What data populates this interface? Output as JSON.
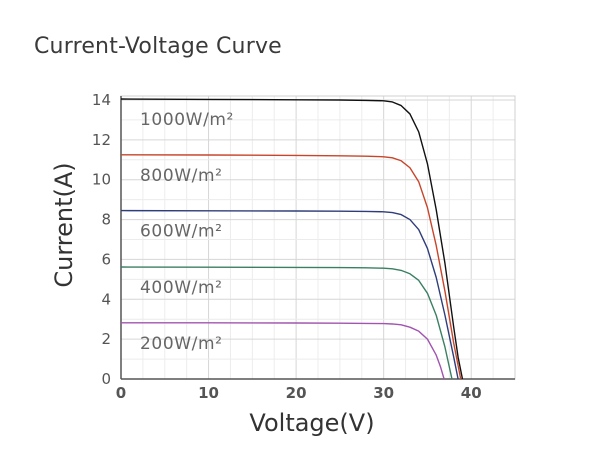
{
  "chart_data": {
    "type": "line",
    "title": "Current-Voltage Curve",
    "xlabel": "Voltage(V)",
    "ylabel": "Current(A)",
    "xlim": [
      0,
      45
    ],
    "ylim": [
      0,
      14.2
    ],
    "xticks": [
      0,
      10,
      20,
      30,
      40
    ],
    "yticks": [
      0,
      2,
      4,
      6,
      8,
      10,
      12,
      14
    ],
    "grid": true,
    "series": [
      {
        "name": "1000W/m²",
        "color": "#111111",
        "x": [
          0,
          10,
          20,
          25,
          28,
          30,
          31,
          32,
          33,
          34,
          35,
          36,
          37,
          38,
          38.5,
          39
        ],
        "y": [
          14.05,
          14.03,
          14.01,
          14.0,
          13.98,
          13.96,
          13.9,
          13.72,
          13.3,
          12.4,
          10.8,
          8.5,
          5.8,
          2.6,
          1.1,
          0
        ]
      },
      {
        "name": "800W/m²",
        "color": "#c8452a",
        "x": [
          0,
          10,
          20,
          25,
          28,
          30,
          31,
          32,
          33,
          34,
          35,
          36,
          37,
          38,
          38.8
        ],
        "y": [
          11.25,
          11.24,
          11.22,
          11.2,
          11.18,
          11.15,
          11.1,
          10.95,
          10.6,
          9.9,
          8.6,
          6.7,
          4.4,
          1.8,
          0
        ]
      },
      {
        "name": "600W/m²",
        "color": "#2f3d7a",
        "x": [
          0,
          10,
          20,
          25,
          28,
          30,
          31,
          32,
          33,
          34,
          35,
          36,
          37,
          38,
          38.5
        ],
        "y": [
          8.45,
          8.44,
          8.43,
          8.42,
          8.41,
          8.39,
          8.35,
          8.25,
          8.0,
          7.5,
          6.55,
          5.1,
          3.2,
          1.1,
          0
        ]
      },
      {
        "name": "400W/m²",
        "color": "#3a7f62",
        "x": [
          0,
          10,
          20,
          25,
          28,
          30,
          31,
          32,
          33,
          34,
          35,
          36,
          37,
          37.8
        ],
        "y": [
          5.62,
          5.61,
          5.6,
          5.59,
          5.58,
          5.56,
          5.53,
          5.45,
          5.28,
          4.95,
          4.3,
          3.2,
          1.6,
          0
        ]
      },
      {
        "name": "200W/m²",
        "color": "#a154b0",
        "x": [
          0,
          10,
          20,
          25,
          28,
          30,
          31,
          32,
          33,
          34,
          35,
          36,
          36.5,
          36.9
        ],
        "y": [
          2.82,
          2.82,
          2.81,
          2.8,
          2.79,
          2.78,
          2.76,
          2.72,
          2.6,
          2.4,
          2.0,
          1.2,
          0.6,
          0
        ]
      }
    ]
  }
}
